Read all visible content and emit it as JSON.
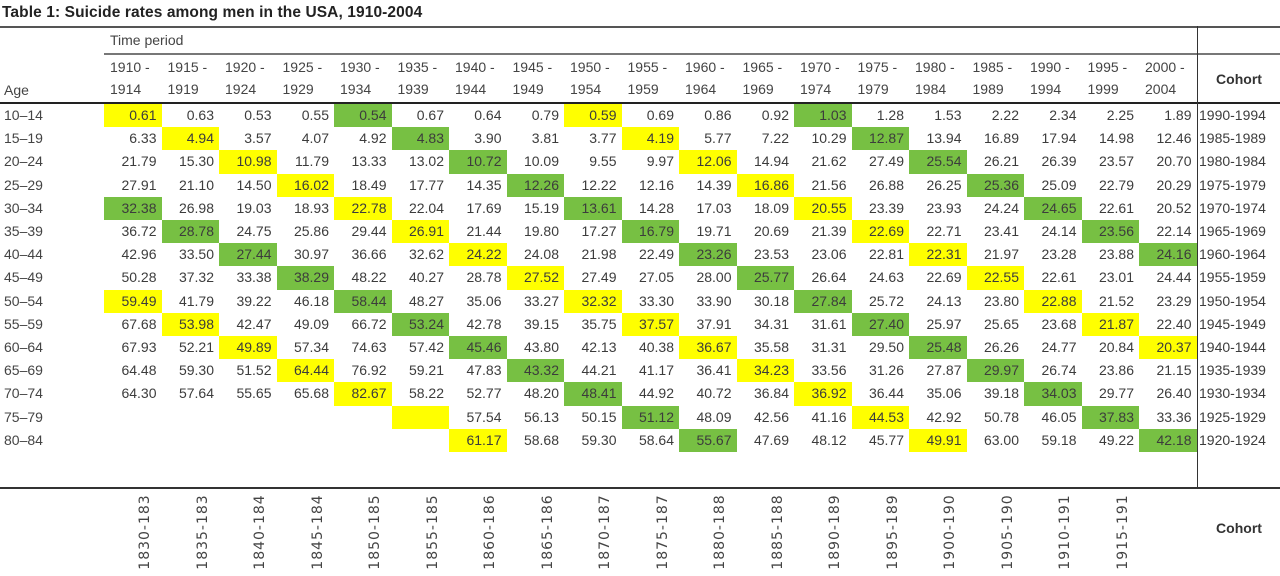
{
  "title": "Table 1: Suicide rates among men in the USA, 1910-2004",
  "time_period_label": "Time period",
  "age_label": "Age",
  "cohort_label": "Cohort",
  "periods": [
    [
      "1910 -",
      "1914"
    ],
    [
      "1915 -",
      "1919"
    ],
    [
      "1920 -",
      "1924"
    ],
    [
      "1925 -",
      "1929"
    ],
    [
      "1930 -",
      "1934"
    ],
    [
      "1935 -",
      "1939"
    ],
    [
      "1940 -",
      "1944"
    ],
    [
      "1945 -",
      "1949"
    ],
    [
      "1950 -",
      "1954"
    ],
    [
      "1955 -",
      "1959"
    ],
    [
      "1960 -",
      "1964"
    ],
    [
      "1965 -",
      "1969"
    ],
    [
      "1970 -",
      "1974"
    ],
    [
      "1975 -",
      "1979"
    ],
    [
      "1980 -",
      "1984"
    ],
    [
      "1985 -",
      "1989"
    ],
    [
      "1990 -",
      "1994"
    ],
    [
      "1995 -",
      "1999"
    ],
    [
      "2000 -",
      "2004"
    ]
  ],
  "colors": {
    "yellow": "#ffff00",
    "green": "#77c043"
  },
  "rows": [
    {
      "age": "10–14",
      "cohort": "1990-1994",
      "values": [
        "0.61",
        "0.63",
        "0.53",
        "0.55",
        "0.54",
        "0.67",
        "0.64",
        "0.79",
        "0.59",
        "0.69",
        "0.86",
        "0.92",
        "1.03",
        "1.28",
        "1.53",
        "2.22",
        "2.34",
        "2.25",
        "1.89"
      ],
      "hl": {
        "0": "y",
        "4": "g",
        "8": "y",
        "12": "g"
      }
    },
    {
      "age": "15–19",
      "cohort": "1985-1989",
      "values": [
        "6.33",
        "4.94",
        "3.57",
        "4.07",
        "4.92",
        "4.83",
        "3.90",
        "3.81",
        "3.77",
        "4.19",
        "5.77",
        "7.22",
        "10.29",
        "12.87",
        "13.94",
        "16.89",
        "17.94",
        "14.98",
        "12.46"
      ],
      "hl": {
        "1": "y",
        "5": "g",
        "9": "y",
        "13": "g"
      }
    },
    {
      "age": "20–24",
      "cohort": "1980-1984",
      "values": [
        "21.79",
        "15.30",
        "10.98",
        "11.79",
        "13.33",
        "13.02",
        "10.72",
        "10.09",
        "9.55",
        "9.97",
        "12.06",
        "14.94",
        "21.62",
        "27.49",
        "25.54",
        "26.21",
        "26.39",
        "23.57",
        "20.70"
      ],
      "hl": {
        "2": "y",
        "6": "g",
        "10": "y",
        "14": "g"
      }
    },
    {
      "age": "25–29",
      "cohort": "1975-1979",
      "values": [
        "27.91",
        "21.10",
        "14.50",
        "16.02",
        "18.49",
        "17.77",
        "14.35",
        "12.26",
        "12.22",
        "12.16",
        "14.39",
        "16.86",
        "21.56",
        "26.88",
        "26.25",
        "25.36",
        "25.09",
        "22.79",
        "20.29"
      ],
      "hl": {
        "3": "y",
        "7": "g",
        "11": "y",
        "15": "g"
      }
    },
    {
      "age": "30–34",
      "cohort": "1970-1974",
      "values": [
        "32.38",
        "26.98",
        "19.03",
        "18.93",
        "22.78",
        "22.04",
        "17.69",
        "15.19",
        "13.61",
        "14.28",
        "17.03",
        "18.09",
        "20.55",
        "23.39",
        "23.93",
        "24.24",
        "24.65",
        "22.61",
        "20.52"
      ],
      "hl": {
        "0": "g",
        "4": "y",
        "8": "g",
        "12": "y",
        "16": "g"
      }
    },
    {
      "age": "35–39",
      "cohort": "1965-1969",
      "values": [
        "36.72",
        "28.78",
        "24.75",
        "25.86",
        "29.44",
        "26.91",
        "21.44",
        "19.80",
        "17.27",
        "16.79",
        "19.71",
        "20.69",
        "21.39",
        "22.69",
        "22.71",
        "23.41",
        "24.14",
        "23.56",
        "22.14"
      ],
      "hl": {
        "1": "g",
        "5": "y",
        "9": "g",
        "13": "y",
        "17": "g"
      }
    },
    {
      "age": "40–44",
      "cohort": "1960-1964",
      "values": [
        "42.96",
        "33.50",
        "27.44",
        "30.97",
        "36.66",
        "32.62",
        "24.22",
        "24.08",
        "21.98",
        "22.49",
        "23.26",
        "23.53",
        "23.06",
        "22.81",
        "22.31",
        "21.97",
        "23.28",
        "23.88",
        "24.16"
      ],
      "hl": {
        "2": "g",
        "6": "y",
        "10": "g",
        "14": "y",
        "18": "g"
      }
    },
    {
      "age": "45–49",
      "cohort": "1955-1959",
      "values": [
        "50.28",
        "37.32",
        "33.38",
        "38.29",
        "48.22",
        "40.27",
        "28.78",
        "27.52",
        "27.49",
        "27.05",
        "28.00",
        "25.77",
        "26.64",
        "24.63",
        "22.69",
        "22.55",
        "22.61",
        "23.01",
        "24.44"
      ],
      "hl": {
        "3": "g",
        "7": "y",
        "11": "g",
        "15": "y"
      }
    },
    {
      "age": "50–54",
      "cohort": "1950-1954",
      "values": [
        "59.49",
        "41.79",
        "39.22",
        "46.18",
        "58.44",
        "48.27",
        "35.06",
        "33.27",
        "32.32",
        "33.30",
        "33.90",
        "30.18",
        "27.84",
        "25.72",
        "24.13",
        "23.80",
        "22.88",
        "21.52",
        "23.29"
      ],
      "hl": {
        "0": "y",
        "4": "g",
        "8": "y",
        "12": "g",
        "16": "y"
      }
    },
    {
      "age": "55–59",
      "cohort": "1945-1949",
      "values": [
        "67.68",
        "53.98",
        "42.47",
        "49.09",
        "66.72",
        "53.24",
        "42.78",
        "39.15",
        "35.75",
        "37.57",
        "37.91",
        "34.31",
        "31.61",
        "27.40",
        "25.97",
        "25.65",
        "23.68",
        "21.87",
        "22.40"
      ],
      "hl": {
        "1": "y",
        "5": "g",
        "9": "y",
        "13": "g",
        "17": "y"
      }
    },
    {
      "age": "60–64",
      "cohort": "1940-1944",
      "values": [
        "67.93",
        "52.21",
        "49.89",
        "57.34",
        "74.63",
        "57.42",
        "45.46",
        "43.80",
        "42.13",
        "40.38",
        "36.67",
        "35.58",
        "31.31",
        "29.50",
        "25.48",
        "26.26",
        "24.77",
        "20.84",
        "20.37"
      ],
      "hl": {
        "2": "y",
        "6": "g",
        "10": "y",
        "14": "g",
        "18": "y"
      }
    },
    {
      "age": "65–69",
      "cohort": "1935-1939",
      "values": [
        "64.48",
        "59.30",
        "51.52",
        "64.44",
        "76.92",
        "59.21",
        "47.83",
        "43.32",
        "44.21",
        "41.17",
        "36.41",
        "34.23",
        "33.56",
        "31.26",
        "27.87",
        "29.97",
        "26.74",
        "23.86",
        "21.15"
      ],
      "hl": {
        "3": "y",
        "7": "g",
        "11": "y",
        "15": "g"
      }
    },
    {
      "age": "70–74",
      "cohort": "1930-1934",
      "values": [
        "64.30",
        "57.64",
        "55.65",
        "65.68",
        "82.67",
        "58.22",
        "52.77",
        "48.20",
        "48.41",
        "44.92",
        "40.72",
        "36.84",
        "36.92",
        "36.44",
        "35.06",
        "39.18",
        "34.03",
        "29.77",
        "26.40"
      ],
      "hl": {
        "4": "y",
        "8": "g",
        "12": "y",
        "16": "g"
      }
    },
    {
      "age": "75–79",
      "cohort": "1925-1929",
      "values": [
        "",
        "",
        "",
        "",
        "",
        "",
        "57.54",
        "56.13",
        "50.15",
        "51.12",
        "48.09",
        "42.56",
        "41.16",
        "44.53",
        "42.92",
        "50.78",
        "46.05",
        "37.83",
        "33.36"
      ],
      "hl": {
        "5": "y",
        "9": "g",
        "13": "y",
        "17": "g"
      }
    },
    {
      "age": "80–84",
      "cohort": "1920-1924",
      "values": [
        "",
        "",
        "",
        "",
        "",
        "",
        "61.17",
        "58.68",
        "59.30",
        "58.64",
        "55.67",
        "47.69",
        "48.12",
        "45.77",
        "49.91",
        "63.00",
        "59.18",
        "49.22",
        "42.18"
      ],
      "hl": {
        "6": "y",
        "10": "g",
        "14": "y",
        "18": "g"
      }
    }
  ],
  "bottom_cohorts": [
    "1830-183",
    "1835-183",
    "1840-184",
    "1845-184",
    "1850-185",
    "1855-185",
    "1860-186",
    "1865-186",
    "1870-187",
    "1875-187",
    "1880-188",
    "1885-188",
    "1890-189",
    "1895-189",
    "1900-190",
    "1905-190",
    "1910-191",
    "1915-191"
  ],
  "chart_data": {
    "type": "table",
    "title": "Table 1: Suicide rates among men in the USA, 1910-2004",
    "columns": [
      "Age",
      "1910-1914",
      "1915-1919",
      "1920-1924",
      "1925-1929",
      "1930-1934",
      "1935-1939",
      "1940-1944",
      "1945-1949",
      "1950-1954",
      "1955-1959",
      "1960-1964",
      "1965-1969",
      "1970-1974",
      "1975-1979",
      "1980-1984",
      "1985-1989",
      "1990-1994",
      "1995-1999",
      "2000-2004",
      "Cohort"
    ],
    "note": "Diagonal cohort cells highlighted alternately yellow and green"
  }
}
